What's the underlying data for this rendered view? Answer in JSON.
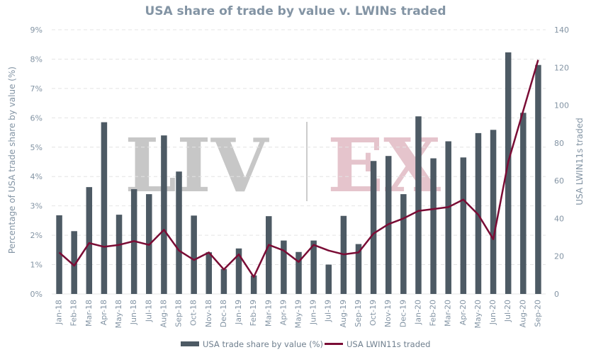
{
  "watermark": {
    "left": "LIV",
    "right": "EX"
  },
  "colors": {
    "bar": "#4d5a64",
    "line": "#7a0c35",
    "text": "#8394a4",
    "grid": "#e4e4e4"
  },
  "chart_data": {
    "type": "bar",
    "title": "USA share of trade by value v. LWINs traded",
    "ylabel": "Percentage of USA trade share by value (%)",
    "y2label": "USA LWIN11s traded",
    "ylim": [
      0,
      9
    ],
    "y2lim": [
      0,
      140
    ],
    "yticks": [
      "0%",
      "1%",
      "2%",
      "3%",
      "4%",
      "5%",
      "6%",
      "7%",
      "8%",
      "9%"
    ],
    "y2ticks": [
      "0",
      "20",
      "40",
      "60",
      "80",
      "100",
      "120",
      "140"
    ],
    "categories": [
      "Jan-18",
      "Feb-18",
      "Mar-18",
      "Apr-18",
      "May-18",
      "Jun-18",
      "Jul-18",
      "Aug-18",
      "Sep-18",
      "Oct-18",
      "Nov-18",
      "Dec-18",
      "Jan-19",
      "Feb-19",
      "Mar-19",
      "Apr-19",
      "May-19",
      "Jun-19",
      "Jul-19",
      "Aug-19",
      "Sep-19",
      "Oct-19",
      "Nov-19",
      "Dec-19",
      "Jan-20",
      "Feb-20",
      "Mar-20",
      "Apr-20",
      "May-20",
      "Jun-20",
      "Jul-20",
      "Aug-20",
      "Sep-20"
    ],
    "series": [
      {
        "name": "USA trade share by value (%)",
        "type": "bar",
        "axis": "left",
        "values": [
          2.68,
          2.14,
          3.64,
          5.85,
          2.7,
          3.57,
          3.4,
          5.4,
          4.17,
          2.67,
          1.42,
          0.85,
          1.55,
          0.63,
          2.65,
          1.82,
          1.43,
          1.82,
          1.0,
          2.66,
          1.7,
          4.53,
          4.7,
          3.4,
          6.05,
          4.62,
          5.2,
          4.65,
          5.48,
          5.59,
          8.23,
          6.17,
          7.8
        ]
      },
      {
        "name": "USA LWIN11s traded",
        "type": "line",
        "axis": "right",
        "values": [
          22,
          15,
          27,
          25,
          26,
          28,
          26,
          34,
          23,
          18,
          22,
          13,
          21,
          9,
          26,
          23,
          17,
          26,
          23,
          21,
          22,
          32,
          37,
          40,
          44,
          45,
          46,
          50,
          42,
          29,
          70,
          null,
          124
        ]
      }
    ],
    "legend": "bottom",
    "grid": true
  }
}
